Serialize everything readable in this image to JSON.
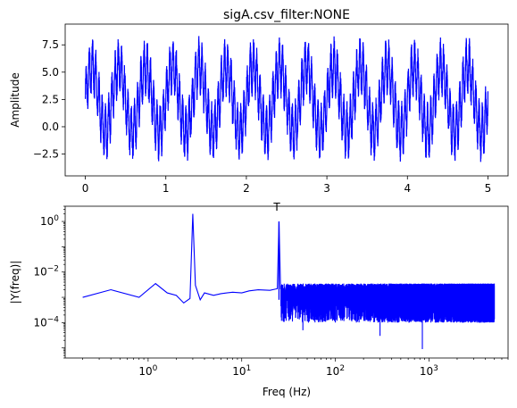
{
  "chart_data": [
    {
      "type": "line",
      "title": "sigA.csv_filter:NONE",
      "xlabel": "T",
      "ylabel": "Amplitude",
      "xlim": [
        -0.25,
        5.25
      ],
      "ylim": [
        -4.5,
        9.4
      ],
      "xticks": [
        0,
        1,
        2,
        3,
        4,
        5
      ],
      "xtick_labels": [
        "0",
        "1",
        "2",
        "3",
        "4",
        "5"
      ],
      "yticks": [
        -2.5,
        0.0,
        2.5,
        5.0,
        7.5
      ],
      "ytick_labels": [
        "−2.5",
        "0.0",
        "2.5",
        "5.0",
        "7.5"
      ],
      "grid": false,
      "color": "#0000ff",
      "series": [
        {
          "signal": {
            "t_start": 0,
            "t_end": 5,
            "offset": 2.5,
            "components": [
              {
                "freq_hz": 3,
                "amplitude": 3.0
              },
              {
                "freq_hz": 25,
                "amplitude": 2.0
              }
            ],
            "noise_amplitude": 1.2
          }
        }
      ]
    },
    {
      "type": "line",
      "title": "",
      "xlabel": "Freq (Hz)",
      "ylabel": "|Y(freq)|",
      "xscale": "log",
      "yscale": "log",
      "xlim": [
        0.13,
        7000
      ],
      "ylim": [
        4e-06,
        4
      ],
      "xticks": [
        1,
        10,
        100,
        1000
      ],
      "xtick_labels": [
        "10^0",
        "10^1",
        "10^2",
        "10^3"
      ],
      "yticks": [
        0.0001,
        0.01,
        1
      ],
      "ytick_labels": [
        "10^-4",
        "10^-2",
        "10^0"
      ],
      "grid": false,
      "color": "#0000ff",
      "series": [
        {
          "x": [
            0.2,
            0.4,
            0.8,
            1.2,
            1.6,
            2.0,
            2.4,
            2.8,
            3.0,
            3.2,
            3.6,
            4.0,
            5.0,
            6.0,
            8.0,
            10.0,
            12.0,
            15.0,
            20.0,
            24.0,
            25.0,
            26.0,
            30.0,
            40.0,
            60.0,
            100.0,
            200.0,
            500.0,
            1000.0,
            2000.0,
            5000.0
          ],
          "y": [
            0.001,
            0.002,
            0.001,
            0.0035,
            0.0015,
            0.0012,
            0.0006,
            0.0009,
            2.0,
            0.003,
            0.0008,
            0.0015,
            0.0012,
            0.0014,
            0.0016,
            0.0015,
            0.0018,
            0.002,
            0.0019,
            0.0022,
            1.0,
            0.0021,
            0.0019,
            0.0018,
            0.0022,
            0.0021,
            0.002,
            0.0022,
            0.002,
            0.0021,
            0.0022
          ]
        }
      ],
      "noise_floor_from_hz": 30,
      "min_dips": [
        {
          "x": 850,
          "y": 9e-06
        },
        {
          "x": 45,
          "y": 5e-05
        },
        {
          "x": 300,
          "y": 3e-05
        }
      ]
    }
  ]
}
